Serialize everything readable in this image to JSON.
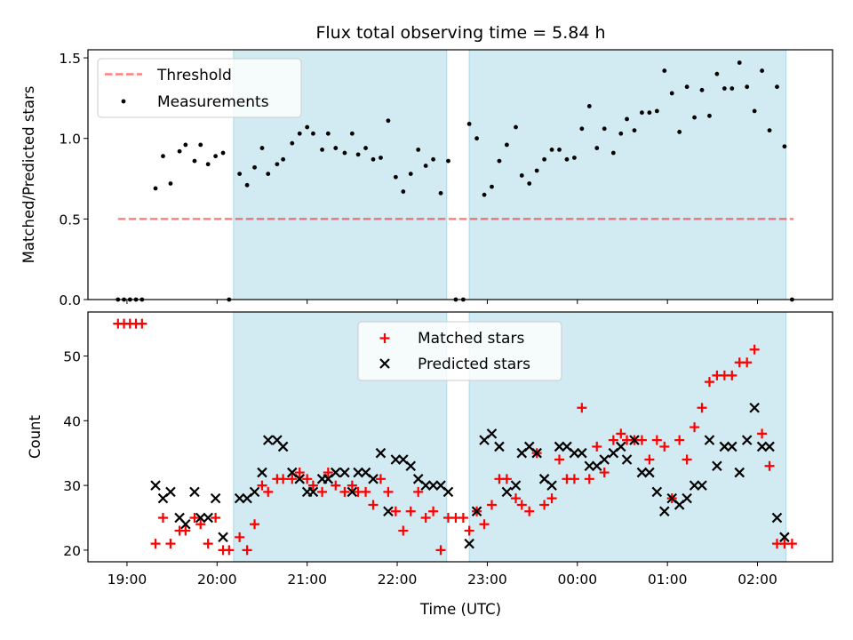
{
  "figure": {
    "title": "Flux total observing time = 5.84 h",
    "xlabel": "Time (UTC)"
  },
  "colors": {
    "shade": "#add8e6",
    "threshold": "#ff0000",
    "measurement": "#000000",
    "matched": "#ff0000",
    "predicted": "#000000"
  },
  "chart_data": [
    {
      "type": "scatter",
      "ylabel": "Matched/Predicted stars",
      "xlim": [
        "18:34",
        "02:50"
      ],
      "ylim": [
        0,
        1.55
      ],
      "yticks": [
        "0.0",
        "0.5",
        "1.0",
        "1.5"
      ],
      "shaded_intervals": [
        [
          "20:11",
          "22:33"
        ],
        [
          "22:48",
          "02:19"
        ]
      ],
      "legend": {
        "placement": "upper-left",
        "entries": [
          "Threshold",
          "Measurements"
        ]
      },
      "threshold": {
        "name": "Threshold",
        "value": 0.5,
        "x_range": [
          "18:54",
          "02:24"
        ]
      },
      "series": [
        {
          "name": "Measurements",
          "x": [
            "18:54",
            "18:58",
            "19:02",
            "19:06",
            "19:10",
            "19:19",
            "19:24",
            "19:29",
            "19:35",
            "19:39",
            "19:45",
            "19:49",
            "19:54",
            "19:59",
            "20:04",
            "20:08",
            "20:15",
            "20:20",
            "20:25",
            "20:30",
            "20:34",
            "20:40",
            "20:44",
            "20:50",
            "20:55",
            "21:00",
            "21:04",
            "21:10",
            "21:14",
            "21:19",
            "21:25",
            "21:30",
            "21:34",
            "21:39",
            "21:44",
            "21:49",
            "21:54",
            "21:59",
            "22:04",
            "22:09",
            "22:14",
            "22:19",
            "22:24",
            "22:29",
            "22:34",
            "22:39",
            "22:44",
            "22:48",
            "22:53",
            "22:58",
            "23:03",
            "23:08",
            "23:13",
            "23:19",
            "23:23",
            "23:28",
            "23:33",
            "23:38",
            "23:43",
            "23:48",
            "23:53",
            "23:58",
            "00:03",
            "00:08",
            "00:13",
            "00:18",
            "00:24",
            "00:29",
            "00:33",
            "00:38",
            "00:43",
            "00:48",
            "00:53",
            "00:58",
            "01:03",
            "01:08",
            "01:13",
            "01:18",
            "01:23",
            "01:28",
            "01:33",
            "01:38",
            "01:43",
            "01:48",
            "01:53",
            "01:58",
            "02:03",
            "02:08",
            "02:13",
            "02:18",
            "02:23"
          ],
          "y": [
            0,
            0,
            0,
            0,
            0,
            0.69,
            0.89,
            0.72,
            0.92,
            0.96,
            0.86,
            0.96,
            0.84,
            0.89,
            0.91,
            0,
            0.78,
            0.71,
            0.82,
            0.94,
            0.78,
            0.84,
            0.87,
            0.97,
            1.03,
            1.07,
            1.03,
            0.93,
            1.03,
            0.94,
            0.91,
            1.03,
            0.9,
            0.94,
            0.87,
            0.88,
            1.11,
            0.76,
            0.67,
            0.78,
            0.93,
            0.83,
            0.87,
            0.66,
            0.86,
            0,
            0,
            1.09,
            1,
            0.65,
            0.7,
            0.86,
            0.96,
            1.07,
            0.77,
            0.72,
            0.8,
            0.87,
            0.93,
            0.93,
            0.87,
            0.88,
            1.06,
            1.2,
            0.94,
            1.06,
            0.91,
            1.03,
            1.12,
            1.05,
            1.16,
            1.16,
            1.17,
            1.42,
            1.28,
            1.04,
            1.32,
            1.13,
            1.3,
            1.14,
            1.4,
            1.31,
            1.31,
            1.47,
            1.32,
            1.17,
            1.42,
            1.05,
            1.32,
            0.95,
            0
          ]
        }
      ]
    },
    {
      "type": "scatter",
      "ylabel": "Count",
      "xlim": [
        "18:34",
        "02:50"
      ],
      "ylim": [
        18.2,
        56.8
      ],
      "yticks": [
        "20",
        "30",
        "40",
        "50"
      ],
      "xticks": [
        "19:00",
        "20:00",
        "21:00",
        "22:00",
        "23:00",
        "00:00",
        "01:00",
        "02:00"
      ],
      "shaded_intervals": [
        [
          "20:11",
          "22:33"
        ],
        [
          "22:48",
          "02:19"
        ]
      ],
      "legend": {
        "placement": "upper-center",
        "entries": [
          "Matched stars",
          "Predicted stars"
        ]
      },
      "series": [
        {
          "name": "Matched stars",
          "marker": "plus",
          "x": [
            "18:54",
            "18:58",
            "19:02",
            "19:06",
            "19:10",
            "19:19",
            "19:24",
            "19:29",
            "19:35",
            "19:39",
            "19:45",
            "19:49",
            "19:54",
            "19:59",
            "20:04",
            "20:08",
            "20:15",
            "20:20",
            "20:25",
            "20:30",
            "20:34",
            "20:40",
            "20:44",
            "20:50",
            "20:55",
            "21:00",
            "21:04",
            "21:10",
            "21:14",
            "21:19",
            "21:25",
            "21:30",
            "21:34",
            "21:39",
            "21:44",
            "21:49",
            "21:54",
            "21:59",
            "22:04",
            "22:09",
            "22:14",
            "22:19",
            "22:24",
            "22:29",
            "22:34",
            "22:39",
            "22:44",
            "22:48",
            "22:53",
            "22:58",
            "23:03",
            "23:08",
            "23:13",
            "23:19",
            "23:23",
            "23:28",
            "23:33",
            "23:38",
            "23:43",
            "23:48",
            "23:53",
            "23:58",
            "00:03",
            "00:08",
            "00:13",
            "00:18",
            "00:24",
            "00:29",
            "00:33",
            "00:38",
            "00:43",
            "00:48",
            "00:53",
            "00:58",
            "01:03",
            "01:08",
            "01:13",
            "01:18",
            "01:23",
            "01:28",
            "01:33",
            "01:38",
            "01:43",
            "01:48",
            "01:53",
            "01:58",
            "02:03",
            "02:08",
            "02:13",
            "02:18",
            "02:23"
          ],
          "y": [
            55,
            55,
            55,
            55,
            55,
            21,
            25,
            21,
            23,
            23,
            25,
            24,
            21,
            25,
            20,
            20,
            22,
            20,
            24,
            30,
            29,
            31,
            31,
            31,
            32,
            31,
            30,
            29,
            32,
            30,
            29,
            30,
            29,
            29,
            27,
            31,
            29,
            26,
            23,
            26,
            29,
            25,
            26,
            20,
            25,
            25,
            25,
            23,
            26,
            24,
            27,
            31,
            31,
            28,
            27,
            26,
            35,
            27,
            28,
            34,
            31,
            31,
            42,
            31,
            36,
            32,
            37,
            38,
            37,
            37,
            37,
            34,
            37,
            36,
            28,
            37,
            34,
            39,
            42,
            46,
            47,
            47,
            47,
            49,
            49,
            51,
            38,
            33,
            21,
            21,
            21
          ]
        },
        {
          "name": "Predicted stars",
          "marker": "x",
          "x": [
            "19:19",
            "19:24",
            "19:29",
            "19:35",
            "19:39",
            "19:45",
            "19:49",
            "19:54",
            "19:59",
            "20:04",
            "20:15",
            "20:20",
            "20:25",
            "20:30",
            "20:34",
            "20:40",
            "20:44",
            "20:50",
            "20:55",
            "21:00",
            "21:04",
            "21:10",
            "21:14",
            "21:19",
            "21:25",
            "21:30",
            "21:34",
            "21:39",
            "21:44",
            "21:49",
            "21:54",
            "21:59",
            "22:04",
            "22:09",
            "22:14",
            "22:19",
            "22:24",
            "22:29",
            "22:34",
            "22:48",
            "22:53",
            "22:58",
            "23:03",
            "23:08",
            "23:13",
            "23:19",
            "23:23",
            "23:28",
            "23:33",
            "23:38",
            "23:43",
            "23:48",
            "23:53",
            "23:58",
            "00:03",
            "00:08",
            "00:13",
            "00:18",
            "00:24",
            "00:29",
            "00:33",
            "00:38",
            "00:43",
            "00:48",
            "00:53",
            "00:58",
            "01:03",
            "01:08",
            "01:13",
            "01:18",
            "01:23",
            "01:28",
            "01:33",
            "01:38",
            "01:43",
            "01:48",
            "01:53",
            "01:58",
            "02:03",
            "02:08",
            "02:13",
            "02:18"
          ],
          "y": [
            30,
            28,
            29,
            25,
            24,
            29,
            25,
            25,
            28,
            22,
            28,
            28,
            29,
            32,
            37,
            37,
            36,
            32,
            31,
            29,
            29,
            31,
            31,
            32,
            32,
            29,
            32,
            32,
            31,
            35,
            26,
            34,
            34,
            33,
            31,
            30,
            30,
            30,
            29,
            21,
            26,
            37,
            38,
            36,
            29,
            30,
            35,
            36,
            35,
            31,
            30,
            36,
            36,
            35,
            35,
            33,
            33,
            34,
            35,
            36,
            34,
            37,
            32,
            32,
            29,
            26,
            28,
            27,
            28,
            30,
            30,
            37,
            33,
            36,
            36,
            32,
            37,
            42,
            36,
            36,
            25,
            22
          ]
        }
      ]
    }
  ]
}
